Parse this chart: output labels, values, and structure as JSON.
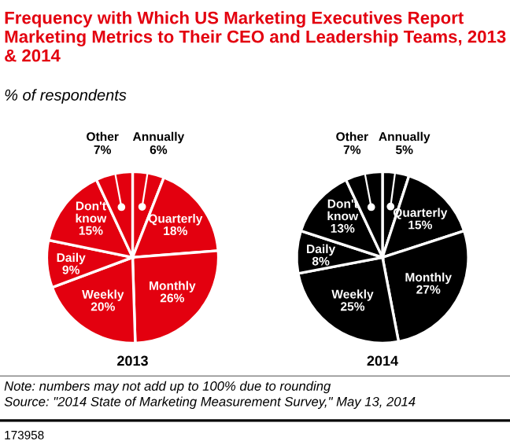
{
  "chart_data": [
    {
      "type": "pie",
      "title": "Frequency with Which US Marketing Executives Report Marketing Metrics to Their CEO and Leadership Teams, 2013 & 2014",
      "subtitle": "% of respondents",
      "xlabel": "2013",
      "categories": [
        "Annually",
        "Quarterly",
        "Monthly",
        "Weekly",
        "Daily",
        "Don't know",
        "Other"
      ],
      "values": [
        6,
        18,
        26,
        20,
        9,
        15,
        7
      ],
      "value_labels": [
        "6%",
        "18%",
        "26%",
        "20%",
        "9%",
        "15%",
        "7%"
      ],
      "colors": [
        "#e3000f",
        "#e3000f",
        "#e3000f",
        "#e3000f",
        "#e3000f",
        "#e3000f",
        "#e3000f"
      ],
      "data_labels": true
    },
    {
      "type": "pie",
      "xlabel": "2014",
      "categories": [
        "Annually",
        "Quarterly",
        "Monthly",
        "Weekly",
        "Daily",
        "Don't know",
        "Other"
      ],
      "values": [
        5,
        15,
        27,
        25,
        8,
        13,
        7
      ],
      "value_labels": [
        "5%",
        "15%",
        "27%",
        "25%",
        "8%",
        "13%",
        "7%"
      ],
      "colors": [
        "#000000",
        "#000000",
        "#000000",
        "#000000",
        "#000000",
        "#000000",
        "#000000"
      ],
      "data_labels": true,
      "annotations": [
        "Note: numbers may not add up to 100% due to rounding",
        "Source: \"2014 State of Marketing Measurement Survey,\" May 13, 2014",
        "173958"
      ]
    }
  ]
}
